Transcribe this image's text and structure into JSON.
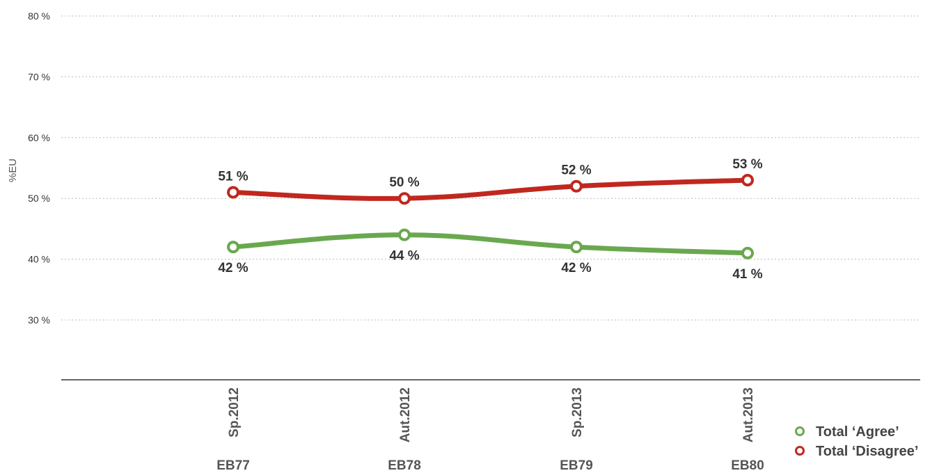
{
  "chart_data": {
    "type": "line",
    "title": "",
    "ylabel": "%EU",
    "xlabel": "",
    "ylim": [
      20,
      80
    ],
    "yticks": [
      30,
      40,
      50,
      60,
      70,
      80
    ],
    "ytick_labels": [
      "30 %",
      "40 %",
      "50 %",
      "60 %",
      "70 %",
      "80 %"
    ],
    "grid": true,
    "legend_position": "bottom-right",
    "categories": [
      "Sp.2012",
      "Aut.2012",
      "Sp.2013",
      "Aut.2013"
    ],
    "wave_labels": [
      "EB77",
      "EB78",
      "EB79",
      "EB80"
    ],
    "series": [
      {
        "name": "Total ‘Agree’",
        "color": "#6aa84f",
        "values": [
          42,
          44,
          42,
          41
        ],
        "labels": [
          "42 %",
          "44 %",
          "42 %",
          "41 %"
        ],
        "label_position": "below"
      },
      {
        "name": "Total ‘Disagree’",
        "color": "#c0281f",
        "values": [
          51,
          50,
          52,
          53
        ],
        "labels": [
          "51 %",
          "50 %",
          "52 %",
          "53 %"
        ],
        "label_position": "above"
      }
    ]
  }
}
